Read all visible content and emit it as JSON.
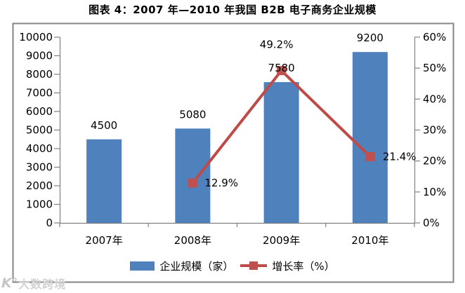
{
  "title": "图表 4：2007 年—2010 年我国 B2B 电子商务企业规模",
  "watermark": {
    "logo": "K°",
    "text": "大数跨境"
  },
  "chart_data": {
    "type": "combo",
    "title": "图表 4：2007 年—2010 年我国 B2B 电子商务企业规模",
    "categories": [
      "2007年",
      "2008年",
      "2009年",
      "2010年"
    ],
    "series": [
      {
        "name": "企业规模（家）",
        "type": "bar",
        "axis": "left",
        "color": "#4F81BD",
        "values": [
          4500,
          5080,
          7580,
          9200
        ],
        "data_labels": [
          "4500",
          "5080",
          "7580",
          "9200"
        ]
      },
      {
        "name": "增长率（%）",
        "type": "line",
        "axis": "right",
        "color": "#BE4B48",
        "marker_color": "#C0504D",
        "values": [
          null,
          12.9,
          49.2,
          21.4
        ],
        "data_labels": [
          null,
          "12.9%",
          "49.2%",
          "21.4%"
        ]
      }
    ],
    "left_axis": {
      "min": 0,
      "max": 10000,
      "step": 1000,
      "suffix": ""
    },
    "right_axis": {
      "min": 0,
      "max": 60,
      "step": 10,
      "suffix": "%"
    },
    "legend_position": "bottom",
    "grid": false,
    "frame_color": "#858585",
    "axis_color": "#808080"
  }
}
